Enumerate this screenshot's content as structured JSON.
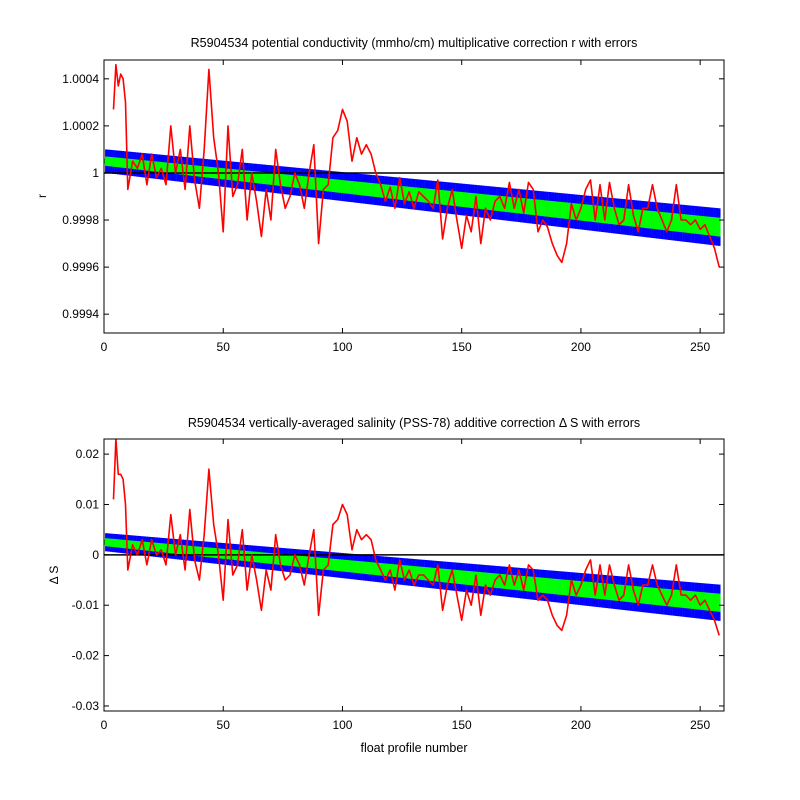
{
  "chart_data": [
    {
      "type": "line",
      "title": "R5904534 potential conductivity (mmho/cm) multiplicative correction r with errors",
      "xlabel": "",
      "ylabel": "r",
      "xlim": [
        0,
        260
      ],
      "ylim": [
        0.99932,
        1.00048
      ],
      "xticks": [
        0,
        50,
        100,
        150,
        200,
        250
      ],
      "yticks": [
        0.9994,
        0.9996,
        0.9998,
        1,
        1.0002,
        1.0004
      ],
      "ytick_labels": [
        "0.9994",
        "0.9996",
        "0.9998",
        "1",
        "1.0002",
        "1.0004"
      ],
      "reference_line": 1,
      "fit": {
        "x_start": 1,
        "x_end": 258,
        "center_start": 1.00005,
        "center_end": 0.99977,
        "half_width_green_start": 2e-05,
        "half_width_green_end": 4e-05,
        "half_width_blue_start": 5e-05,
        "half_width_blue_end": 8e-05
      },
      "series": [
        {
          "color": "#ff0000",
          "x": [
            4,
            5,
            6,
            7,
            8,
            9,
            10,
            12,
            14,
            16,
            18,
            20,
            22,
            24,
            26,
            28,
            30,
            32,
            34,
            36,
            38,
            40,
            42,
            44,
            46,
            48,
            50,
            52,
            54,
            56,
            58,
            60,
            62,
            64,
            66,
            68,
            70,
            72,
            74,
            76,
            78,
            80,
            82,
            84,
            86,
            88,
            90,
            92,
            94,
            96,
            98,
            100,
            102,
            104,
            106,
            108,
            110,
            112,
            114,
            116,
            118,
            120,
            122,
            124,
            126,
            128,
            130,
            132,
            134,
            136,
            138,
            140,
            142,
            144,
            146,
            148,
            150,
            152,
            154,
            156,
            158,
            160,
            162,
            164,
            166,
            168,
            170,
            172,
            174,
            176,
            178,
            180,
            182,
            184,
            186,
            188,
            190,
            192,
            194,
            196,
            198,
            200,
            202,
            204,
            206,
            208,
            210,
            212,
            214,
            216,
            218,
            220,
            222,
            224,
            226,
            228,
            230,
            232,
            234,
            236,
            238,
            240,
            242,
            244,
            246,
            248,
            250,
            252,
            254,
            256,
            258
          ],
          "values": [
            1.00027,
            1.00046,
            1.00037,
            1.00042,
            1.0004,
            1.0003,
            0.99993,
            1.00005,
            1.00002,
            1.00008,
            0.99995,
            1.00008,
            0.99998,
            1.00002,
            0.99995,
            1.0002,
            1.0,
            1.0001,
            0.99993,
            1.0002,
            0.99997,
            0.99985,
            1.0001,
            1.00044,
            1.00015,
            1.0,
            0.99975,
            1.0002,
            0.9999,
            0.99995,
            1.0001,
            0.9998,
            1.0,
            0.99988,
            0.99973,
            0.99993,
            0.9998,
            1.0001,
            0.99995,
            0.99985,
            0.9999,
            1.0,
            0.99995,
            0.99985,
            1.0,
            1.00012,
            0.9997,
            0.99993,
            0.99995,
            1.00015,
            1.00018,
            1.00027,
            1.00022,
            1.00005,
            1.00015,
            1.00008,
            1.00012,
            1.00008,
            1.0,
            0.99995,
            0.99988,
            0.99994,
            0.99985,
            0.99998,
            0.99987,
            0.99992,
            0.99985,
            0.99992,
            0.9999,
            0.99988,
            0.99985,
            0.99997,
            0.99972,
            0.99985,
            0.99993,
            0.9998,
            0.99968,
            0.99982,
            0.99975,
            0.9999,
            0.9997,
            0.99985,
            0.9998,
            0.99988,
            0.9999,
            0.99985,
            0.99996,
            0.99985,
            0.99993,
            0.99983,
            0.99996,
            0.99993,
            0.99975,
            0.9998,
            0.99977,
            0.9997,
            0.99965,
            0.99962,
            0.9997,
            0.99987,
            0.9998,
            0.99985,
            0.99993,
            0.99997,
            0.9998,
            0.99995,
            0.9998,
            0.99996,
            0.99985,
            0.99978,
            0.9998,
            0.99995,
            0.99982,
            0.99975,
            0.99985,
            0.99985,
            0.99995,
            0.99985,
            0.9998,
            0.99975,
            0.9998,
            0.99995,
            0.9998,
            0.9998,
            0.99978,
            0.9998,
            0.99976,
            0.99978,
            0.99973,
            0.99968,
            0.9996
          ]
        }
      ]
    },
    {
      "type": "line",
      "title": "R5904534 vertically-averaged salinity (PSS-78) additive correction Δ S with errors",
      "xlabel": "float profile number",
      "ylabel": "Δ S",
      "xlim": [
        0,
        260
      ],
      "ylim": [
        -0.031,
        0.023
      ],
      "xticks": [
        0,
        50,
        100,
        150,
        200,
        250
      ],
      "yticks": [
        -0.03,
        -0.02,
        -0.01,
        0,
        0.01,
        0.02
      ],
      "ytick_labels": [
        "-0.03",
        "-0.02",
        "-0.01",
        "0",
        "0.01",
        "0.02"
      ],
      "reference_line": 0,
      "fit": {
        "x_start": 1,
        "x_end": 258,
        "center_start": 0.0025,
        "center_end": -0.0095,
        "half_width_green_start": 0.0008,
        "half_width_green_end": 0.0018,
        "half_width_blue_start": 0.0018,
        "half_width_blue_end": 0.0036
      },
      "series": [
        {
          "color": "#ff0000",
          "x": [
            4,
            5,
            6,
            7,
            8,
            9,
            10,
            12,
            14,
            16,
            18,
            20,
            22,
            24,
            26,
            28,
            30,
            32,
            34,
            36,
            38,
            40,
            42,
            44,
            46,
            48,
            50,
            52,
            54,
            56,
            58,
            60,
            62,
            64,
            66,
            68,
            70,
            72,
            74,
            76,
            78,
            80,
            82,
            84,
            86,
            88,
            90,
            92,
            94,
            96,
            98,
            100,
            102,
            104,
            106,
            108,
            110,
            112,
            114,
            116,
            118,
            120,
            122,
            124,
            126,
            128,
            130,
            132,
            134,
            136,
            138,
            140,
            142,
            144,
            146,
            148,
            150,
            152,
            154,
            156,
            158,
            160,
            162,
            164,
            166,
            168,
            170,
            172,
            174,
            176,
            178,
            180,
            182,
            184,
            186,
            188,
            190,
            192,
            194,
            196,
            198,
            200,
            202,
            204,
            206,
            208,
            210,
            212,
            214,
            216,
            218,
            220,
            222,
            224,
            226,
            228,
            230,
            232,
            234,
            236,
            238,
            240,
            242,
            244,
            246,
            248,
            250,
            252,
            254,
            256,
            258
          ],
          "values": [
            0.011,
            0.023,
            0.016,
            0.016,
            0.015,
            0.01,
            -0.003,
            0.002,
            0.0,
            0.003,
            -0.002,
            0.003,
            0.0,
            0.001,
            -0.002,
            0.008,
            0.0,
            0.004,
            -0.003,
            0.009,
            -0.001,
            -0.005,
            0.004,
            0.017,
            0.006,
            0.0,
            -0.009,
            0.007,
            -0.004,
            -0.002,
            0.005,
            -0.007,
            0.0,
            -0.005,
            -0.011,
            -0.003,
            -0.007,
            0.004,
            -0.002,
            -0.005,
            -0.004,
            0.0,
            -0.002,
            -0.006,
            0.0,
            0.005,
            -0.012,
            -0.003,
            -0.002,
            0.006,
            0.007,
            0.01,
            0.008,
            0.001,
            0.005,
            0.003,
            0.004,
            0.003,
            -0.001,
            -0.003,
            -0.005,
            -0.003,
            -0.007,
            -0.001,
            -0.005,
            -0.003,
            -0.006,
            -0.004,
            -0.004,
            -0.005,
            -0.006,
            -0.002,
            -0.011,
            -0.006,
            -0.003,
            -0.008,
            -0.013,
            -0.007,
            -0.01,
            -0.004,
            -0.012,
            -0.006,
            -0.008,
            -0.005,
            -0.004,
            -0.006,
            -0.002,
            -0.006,
            -0.003,
            -0.007,
            -0.002,
            -0.003,
            -0.009,
            -0.008,
            -0.009,
            -0.012,
            -0.014,
            -0.015,
            -0.012,
            -0.005,
            -0.008,
            -0.006,
            -0.003,
            -0.001,
            -0.008,
            -0.002,
            -0.008,
            -0.002,
            -0.006,
            -0.009,
            -0.008,
            -0.002,
            -0.007,
            -0.01,
            -0.006,
            -0.006,
            -0.002,
            -0.006,
            -0.008,
            -0.01,
            -0.008,
            -0.002,
            -0.008,
            -0.008,
            -0.009,
            -0.008,
            -0.01,
            -0.009,
            -0.011,
            -0.013,
            -0.016
          ]
        }
      ]
    }
  ]
}
